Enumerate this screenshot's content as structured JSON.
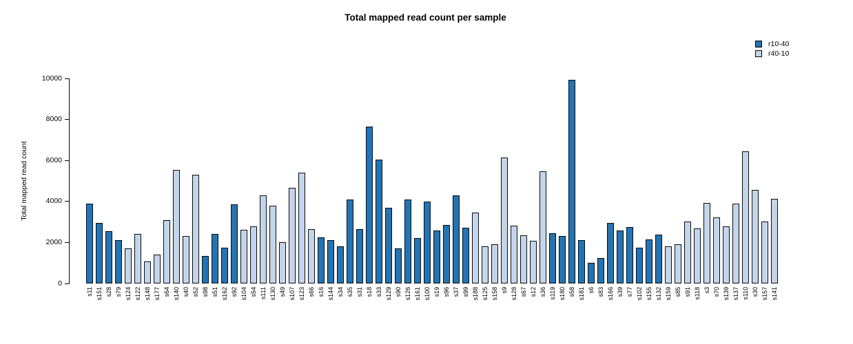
{
  "chart_title": "Total mapped read count per sample",
  "y_axis_title": "Total mapped read count",
  "legend": {
    "items": [
      {
        "label": "r10-40",
        "color": "#2374b5"
      },
      {
        "label": "r40-10",
        "color": "#c3d5ea"
      }
    ]
  },
  "chart_data": {
    "type": "bar",
    "title": "Total mapped read count per sample",
    "xlabel": "",
    "ylabel": "Total mapped read count",
    "ylim": [
      0,
      10000
    ],
    "yticks": [
      0,
      2000,
      4000,
      6000,
      8000,
      10000
    ],
    "grid": false,
    "legend_position": "top-right",
    "series": [
      {
        "name": "r10-40",
        "color": "#2374b5"
      },
      {
        "name": "r40-10",
        "color": "#c3d5ea"
      }
    ],
    "bars": [
      {
        "label": "s11",
        "value": 3890,
        "series": "r10-40"
      },
      {
        "label": "s151",
        "value": 2960,
        "series": "r10-40"
      },
      {
        "label": "s28",
        "value": 2560,
        "series": "r10-40"
      },
      {
        "label": "s79",
        "value": 2100,
        "series": "r10-40"
      },
      {
        "label": "s124",
        "value": 1710,
        "series": "r40-10"
      },
      {
        "label": "s122",
        "value": 2400,
        "series": "r40-10"
      },
      {
        "label": "s148",
        "value": 1080,
        "series": "r40-10"
      },
      {
        "label": "s177",
        "value": 1400,
        "series": "r40-10"
      },
      {
        "label": "s64",
        "value": 3100,
        "series": "r40-10"
      },
      {
        "label": "s140",
        "value": 5550,
        "series": "r40-10"
      },
      {
        "label": "s40",
        "value": 2330,
        "series": "r40-10"
      },
      {
        "label": "s52",
        "value": 5300,
        "series": "r40-10"
      },
      {
        "label": "s98",
        "value": 1350,
        "series": "r10-40"
      },
      {
        "label": "s51",
        "value": 2400,
        "series": "r10-40"
      },
      {
        "label": "s162",
        "value": 1750,
        "series": "r10-40"
      },
      {
        "label": "s92",
        "value": 3850,
        "series": "r10-40"
      },
      {
        "label": "s104",
        "value": 2620,
        "series": "r40-10"
      },
      {
        "label": "s54",
        "value": 2800,
        "series": "r40-10"
      },
      {
        "label": "s111",
        "value": 4300,
        "series": "r40-10"
      },
      {
        "label": "s130",
        "value": 3800,
        "series": "r40-10"
      },
      {
        "label": "s49",
        "value": 2000,
        "series": "r40-10"
      },
      {
        "label": "s107",
        "value": 4650,
        "series": "r40-10"
      },
      {
        "label": "s123",
        "value": 5400,
        "series": "r40-10"
      },
      {
        "label": "s66",
        "value": 2640,
        "series": "r40-10"
      },
      {
        "label": "s16",
        "value": 2250,
        "series": "r10-40"
      },
      {
        "label": "s144",
        "value": 2100,
        "series": "r10-40"
      },
      {
        "label": "s34",
        "value": 1800,
        "series": "r10-40"
      },
      {
        "label": "s35",
        "value": 4080,
        "series": "r10-40"
      },
      {
        "label": "s31",
        "value": 2660,
        "series": "r10-40"
      },
      {
        "label": "s18",
        "value": 7650,
        "series": "r10-40"
      },
      {
        "label": "s33",
        "value": 6030,
        "series": "r10-40"
      },
      {
        "label": "s129",
        "value": 3700,
        "series": "r10-40"
      },
      {
        "label": "s90",
        "value": 1700,
        "series": "r10-40"
      },
      {
        "label": "s126",
        "value": 4100,
        "series": "r10-40"
      },
      {
        "label": "s161",
        "value": 2230,
        "series": "r10-40"
      },
      {
        "label": "s100",
        "value": 3980,
        "series": "r10-40"
      },
      {
        "label": "s19",
        "value": 2600,
        "series": "r10-40"
      },
      {
        "label": "s96",
        "value": 2840,
        "series": "r10-40"
      },
      {
        "label": "s37",
        "value": 4280,
        "series": "r10-40"
      },
      {
        "label": "s99",
        "value": 2710,
        "series": "r10-40"
      },
      {
        "label": "s188",
        "value": 3450,
        "series": "r40-10"
      },
      {
        "label": "s125",
        "value": 1810,
        "series": "r40-10"
      },
      {
        "label": "s158",
        "value": 1900,
        "series": "r40-10"
      },
      {
        "label": "s9",
        "value": 6150,
        "series": "r40-10"
      },
      {
        "label": "s128",
        "value": 2830,
        "series": "r40-10"
      },
      {
        "label": "s67",
        "value": 2350,
        "series": "r40-10"
      },
      {
        "label": "s12",
        "value": 2090,
        "series": "r40-10"
      },
      {
        "label": "s36",
        "value": 5480,
        "series": "r40-10"
      },
      {
        "label": "s119",
        "value": 2450,
        "series": "r10-40"
      },
      {
        "label": "s180",
        "value": 2330,
        "series": "r10-40"
      },
      {
        "label": "s58",
        "value": 9920,
        "series": "r10-40"
      },
      {
        "label": "s181",
        "value": 2120,
        "series": "r10-40"
      },
      {
        "label": "s6",
        "value": 1000,
        "series": "r10-40"
      },
      {
        "label": "s83",
        "value": 1250,
        "series": "r10-40"
      },
      {
        "label": "s166",
        "value": 2960,
        "series": "r10-40"
      },
      {
        "label": "s39",
        "value": 2600,
        "series": "r10-40"
      },
      {
        "label": "s77",
        "value": 2750,
        "series": "r10-40"
      },
      {
        "label": "s102",
        "value": 1750,
        "series": "r10-40"
      },
      {
        "label": "s155",
        "value": 2160,
        "series": "r10-40"
      },
      {
        "label": "s132",
        "value": 2390,
        "series": "r10-40"
      },
      {
        "label": "s159",
        "value": 1820,
        "series": "r40-10"
      },
      {
        "label": "s85",
        "value": 1910,
        "series": "r40-10"
      },
      {
        "label": "s91",
        "value": 3030,
        "series": "r40-10"
      },
      {
        "label": "s118",
        "value": 2680,
        "series": "r40-10"
      },
      {
        "label": "s3",
        "value": 3930,
        "series": "r40-10"
      },
      {
        "label": "s70",
        "value": 3220,
        "series": "r40-10"
      },
      {
        "label": "s139",
        "value": 2790,
        "series": "r40-10"
      },
      {
        "label": "s137",
        "value": 3900,
        "series": "r40-10"
      },
      {
        "label": "s110",
        "value": 6460,
        "series": "r40-10"
      },
      {
        "label": "s30",
        "value": 4570,
        "series": "r40-10"
      },
      {
        "label": "s157",
        "value": 3020,
        "series": "r40-10"
      },
      {
        "label": "s141",
        "value": 4140,
        "series": "r40-10"
      }
    ]
  }
}
